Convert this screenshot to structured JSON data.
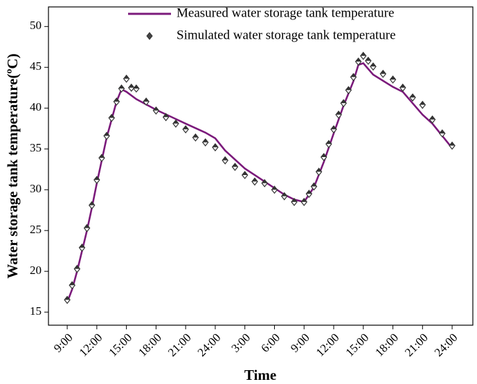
{
  "chart_data": {
    "type": "line",
    "x_label": "Time",
    "y_label": "Water storage tank temperature(ºC)",
    "xlim": [
      -1.9,
      41.1
    ],
    "ylim": [
      13.4,
      52.4
    ],
    "xticks": [
      {
        "value": 0,
        "label": "9:00"
      },
      {
        "value": 3,
        "label": "12:00"
      },
      {
        "value": 6,
        "label": "15:00"
      },
      {
        "value": 9,
        "label": "18:00"
      },
      {
        "value": 12,
        "label": "21:00"
      },
      {
        "value": 15,
        "label": "24:00"
      },
      {
        "value": 18,
        "label": "3:00"
      },
      {
        "value": 21,
        "label": "6:00"
      },
      {
        "value": 24,
        "label": "9:00"
      },
      {
        "value": 27,
        "label": "12:00"
      },
      {
        "value": 30,
        "label": "15:00"
      },
      {
        "value": 33,
        "label": "18:00"
      },
      {
        "value": 36,
        "label": "21:00"
      },
      {
        "value": 39,
        "label": "24:00"
      }
    ],
    "yticks": [
      15,
      20,
      25,
      30,
      35,
      40,
      45,
      50
    ],
    "legend": "top-right",
    "series": [
      {
        "name": "Measured water storage tank temperature",
        "color": "#7b1a7b",
        "mode": "line",
        "x": [
          0,
          0.5,
          1,
          1.5,
          2,
          2.5,
          3,
          3.5,
          4,
          4.5,
          5,
          5.5,
          6,
          7,
          9,
          12,
          14,
          15,
          16,
          18,
          20,
          22,
          23,
          24,
          24.5,
          25,
          26,
          27,
          28,
          29,
          29.5,
          30,
          31,
          33,
          34,
          35,
          36,
          37,
          38,
          39
        ],
        "values": [
          16.2,
          17.8,
          20.0,
          22.5,
          25.0,
          27.8,
          30.8,
          33.6,
          36.4,
          38.6,
          40.8,
          42.3,
          42.0,
          41.1,
          39.8,
          38.1,
          37.0,
          36.3,
          34.8,
          32.6,
          31.0,
          29.4,
          28.8,
          28.5,
          29.4,
          30.3,
          33.4,
          36.9,
          40.3,
          43.3,
          45.3,
          45.5,
          44.1,
          42.6,
          42.0,
          40.6,
          39.2,
          38.1,
          36.6,
          35.1
        ]
      },
      {
        "name": "Simulated water storage tank temperature",
        "color": "#333333",
        "mode": "markers",
        "x": [
          0,
          0.5,
          1,
          1.5,
          2,
          2.5,
          3,
          3.5,
          4,
          4.5,
          5,
          5.5,
          6,
          6.5,
          7,
          8,
          9,
          10,
          11,
          12,
          13,
          14,
          15,
          16,
          17,
          18,
          19,
          20,
          21,
          22,
          23,
          24,
          24.5,
          25,
          25.5,
          26,
          26.5,
          27,
          27.5,
          28,
          28.5,
          29,
          29.5,
          30,
          30.5,
          31,
          32,
          33,
          34,
          35,
          36,
          37,
          38,
          39
        ],
        "values": [
          16.5,
          18.3,
          20.3,
          22.9,
          25.3,
          28.1,
          31.2,
          33.9,
          36.6,
          38.8,
          40.8,
          42.4,
          43.6,
          42.5,
          42.4,
          40.8,
          39.7,
          38.9,
          38.1,
          37.4,
          36.4,
          35.8,
          35.2,
          33.6,
          32.8,
          31.8,
          31.0,
          30.8,
          30.0,
          29.2,
          28.5,
          28.5,
          29.5,
          30.4,
          32.2,
          34.0,
          35.6,
          37.4,
          39.2,
          40.6,
          42.2,
          43.8,
          45.7,
          46.4,
          45.8,
          45.1,
          44.2,
          43.5,
          42.5,
          41.3,
          40.4,
          38.6,
          36.9,
          35.4
        ]
      }
    ]
  }
}
